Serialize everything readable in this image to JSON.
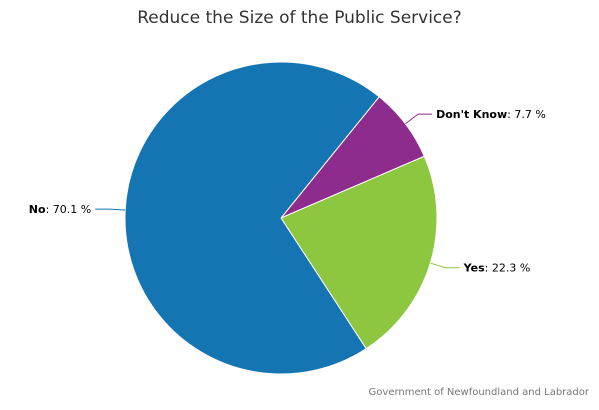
{
  "chart_data": {
    "type": "pie",
    "title": "Reduce the Size of the Public Service?",
    "slices": [
      {
        "name": "Don't Know",
        "value": 7.7,
        "label": ": 7.7 %",
        "color": "#8e2c8e"
      },
      {
        "name": "Yes",
        "value": 22.3,
        "label": ": 22.3 %",
        "color": "#8dc63f"
      },
      {
        "name": "No",
        "value": 70.1,
        "label": ": 70.1 %",
        "color": "#1575b3"
      }
    ],
    "start_angle_deg": 39,
    "direction": "clockwise",
    "legend": "none",
    "credit": "Government of Newfoundland and Labrador"
  }
}
